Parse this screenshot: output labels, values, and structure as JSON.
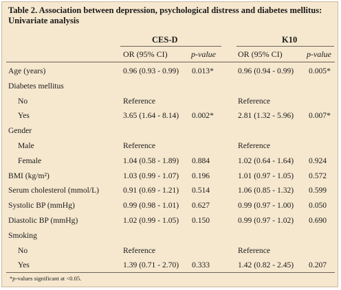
{
  "title": "Table 2. Association between depression, psychological distress and diabetes mellitus: Univariate analysis",
  "groups": [
    {
      "label": "CES-D"
    },
    {
      "label": "K10"
    }
  ],
  "columns": {
    "or": "OR (95% CI)",
    "p": "p-value"
  },
  "rows": [
    {
      "label": "Age (years)",
      "indent": false,
      "c1": "0.96 (0.93 - 0.99)",
      "p1": "0.013*",
      "c2": "0.96 (0.94 - 0.99)",
      "p2": "0.005*"
    },
    {
      "label": "Diabetes mellitus",
      "indent": false,
      "c1": "",
      "p1": "",
      "c2": "",
      "p2": ""
    },
    {
      "label": "No",
      "indent": true,
      "c1": "Reference",
      "p1": "",
      "c2": "Reference",
      "p2": ""
    },
    {
      "label": "Yes",
      "indent": true,
      "c1": "3.65 (1.64 - 8.14)",
      "p1": "0.002*",
      "c2": "2.81 (1.32 - 5.96)",
      "p2": "0.007*"
    },
    {
      "label": "Gender",
      "indent": false,
      "c1": "",
      "p1": "",
      "c2": "",
      "p2": ""
    },
    {
      "label": "Male",
      "indent": true,
      "c1": "Reference",
      "p1": "",
      "c2": "Reference",
      "p2": ""
    },
    {
      "label": "Female",
      "indent": true,
      "c1": "1.04 (0.58 - 1.89)",
      "p1": "0.884",
      "c2": "1.02 (0.64 - 1.64)",
      "p2": "0.924"
    },
    {
      "label": "BMI (kg/m²)",
      "indent": false,
      "c1": "1.03 (0.99 - 1.07)",
      "p1": "0.196",
      "c2": "1.01 (0.97 - 1.05)",
      "p2": "0.572"
    },
    {
      "label": "Serum cholesterol (mmol/L)",
      "indent": false,
      "c1": "0.91 (0.69 - 1.21)",
      "p1": "0.514",
      "c2": "1.06 (0.85 - 1.32)",
      "p2": "0.599"
    },
    {
      "label": "Systolic BP (mmHg)",
      "indent": false,
      "c1": "0.99 (0.98 - 1.01)",
      "p1": "0.627",
      "c2": "0.99 (0.97 - 1.00)",
      "p2": "0.050"
    },
    {
      "label": "Diastolic BP (mmHg)",
      "indent": false,
      "c1": "1.02 (0.99 - 1.05)",
      "p1": "0.150",
      "c2": "0.99 (0.97 - 1.02)",
      "p2": "0.690"
    },
    {
      "label": "Smoking",
      "indent": false,
      "c1": "",
      "p1": "",
      "c2": "",
      "p2": ""
    },
    {
      "label": "No",
      "indent": true,
      "c1": "Reference",
      "p1": "",
      "c2": "Reference",
      "p2": ""
    },
    {
      "label": "Yes",
      "indent": true,
      "c1": "1.39 (0.71 - 2.70)",
      "p1": "0.333",
      "c2": "1.42 (0.82 - 2.45)",
      "p2": "0.207"
    }
  ],
  "footnote": {
    "lead": "*",
    "italic": "p",
    "rest": "-values significant at <0.05."
  }
}
